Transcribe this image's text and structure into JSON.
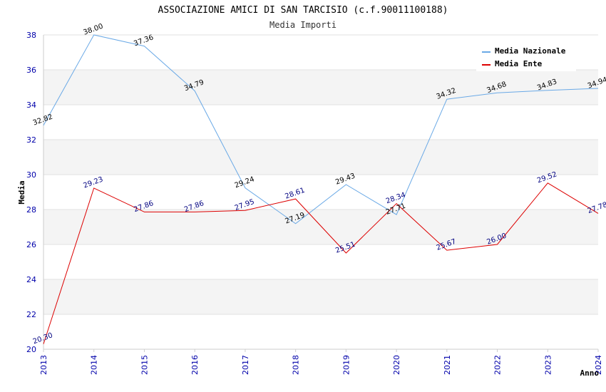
{
  "chart_data": {
    "type": "line",
    "title": "ASSOCIAZIONE AMICI DI SAN TARCISIO (c.f.90011100188)",
    "subtitle": "Media Importi",
    "xlabel": "Anno",
    "ylabel": "Media",
    "ylim": [
      20,
      38
    ],
    "yticks": [
      20,
      22,
      24,
      26,
      28,
      30,
      32,
      34,
      36,
      38
    ],
    "categories": [
      "2013",
      "2014",
      "2015",
      "2016",
      "2017",
      "2018",
      "2019",
      "2020",
      "2021",
      "2022",
      "2023",
      "2024"
    ],
    "grid": "horizontal alternating bands",
    "legend_position": "top-right",
    "series": [
      {
        "name": "Media Nazionale",
        "color": "#6aa9e6",
        "label_color": "#000000",
        "values": [
          32.82,
          38.0,
          37.36,
          34.79,
          29.24,
          27.19,
          29.43,
          27.71,
          34.32,
          34.68,
          34.83,
          34.94
        ],
        "labels": [
          "32.82",
          "38.00",
          "37.36",
          "34.79",
          "29.24",
          "27.19",
          "29.43",
          "27.71",
          "34.32",
          "34.68",
          "34.83",
          "34.94"
        ]
      },
      {
        "name": "Media Ente",
        "color": "#dd0000",
        "label_color": "#000080",
        "values": [
          20.3,
          29.23,
          27.86,
          27.86,
          27.95,
          28.61,
          25.51,
          28.34,
          25.67,
          26.0,
          29.52,
          27.78
        ],
        "labels": [
          "20.30",
          "29.23",
          "27.86",
          "27.86",
          "27.95",
          "28.61",
          "25.51",
          "28.34",
          "25.67",
          "26.00",
          "29.52",
          "27.78"
        ]
      }
    ]
  }
}
